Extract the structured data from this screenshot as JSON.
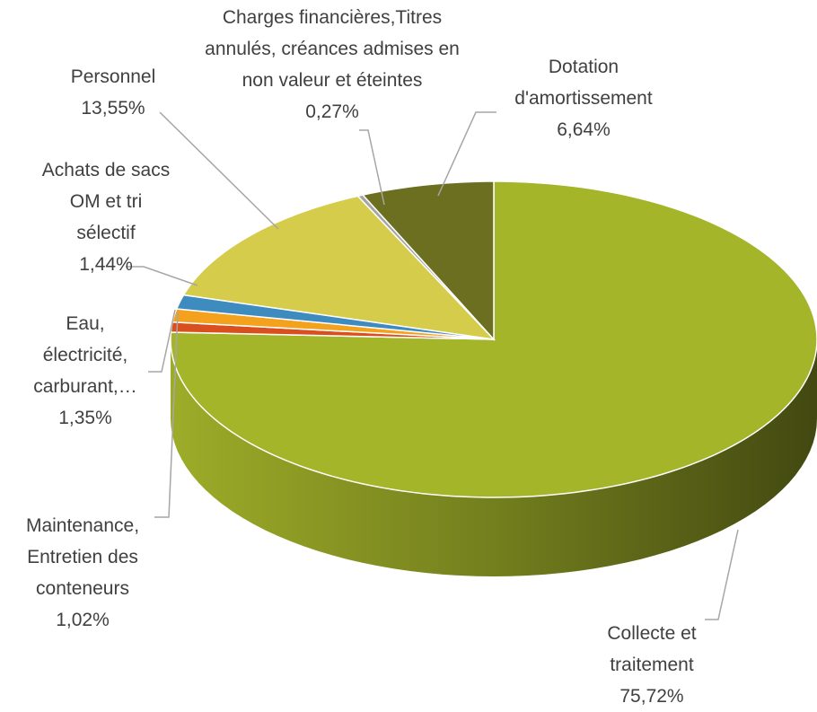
{
  "chart_data": {
    "type": "pie",
    "categories": [
      "Collecte et traitement",
      "Maintenance, Entretien des conteneurs",
      "Eau, électricité, carburant,…",
      "Achats de sacs OM et tri sélectif",
      "Personnel",
      "Charges financières,Titres annulés, créances admises en non valeur et éteintes",
      "Dotation d'amortissement"
    ],
    "values": [
      75.72,
      1.02,
      1.35,
      1.44,
      13.55,
      0.27,
      6.64
    ],
    "value_labels": [
      "75,72%",
      "1,02%",
      "1,35%",
      "1,44%",
      "13,55%",
      "0,27%",
      "6,64%"
    ],
    "colors": [
      "#a5b52a",
      "#d9501e",
      "#f4a11d",
      "#3e8bbf",
      "#d4cc4a",
      "#a5a5a5",
      "#6b6f1f"
    ]
  }
}
